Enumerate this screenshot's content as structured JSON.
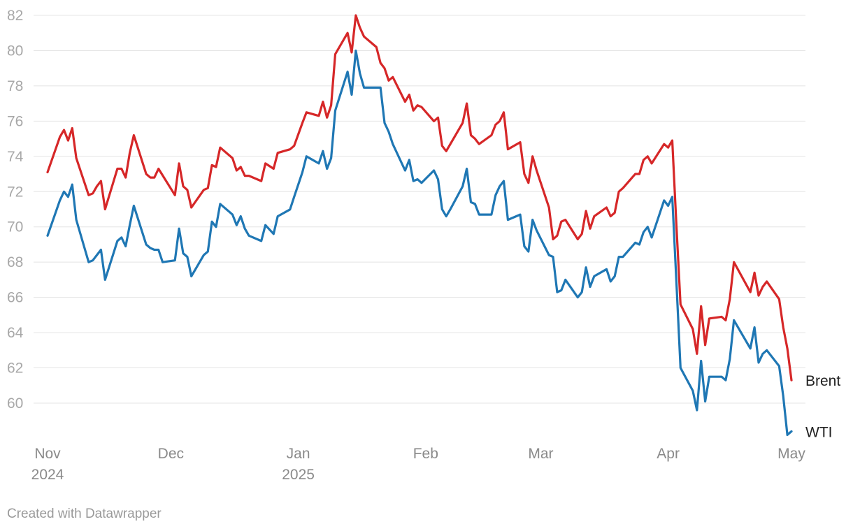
{
  "credit": "Created with Datawrapper",
  "chart_data": {
    "type": "line",
    "title": "",
    "xlabel": "",
    "ylabel": "",
    "xlim": [
      "2024-11-01",
      "2025-05-01"
    ],
    "ylim": [
      58,
      82
    ],
    "yticks": [
      60,
      62,
      64,
      66,
      68,
      70,
      72,
      74,
      76,
      78,
      80,
      82
    ],
    "xticks": [
      {
        "date": "2024-11-01",
        "label": "Nov",
        "sublabel": "2024"
      },
      {
        "date": "2024-12-01",
        "label": "Dec",
        "sublabel": ""
      },
      {
        "date": "2025-01-01",
        "label": "Jan",
        "sublabel": "2025"
      },
      {
        "date": "2025-02-01",
        "label": "Feb",
        "sublabel": ""
      },
      {
        "date": "2025-03-01",
        "label": "Mar",
        "sublabel": ""
      },
      {
        "date": "2025-04-01",
        "label": "Apr",
        "sublabel": ""
      },
      {
        "date": "2025-05-01",
        "label": "May",
        "sublabel": ""
      }
    ],
    "grid": true,
    "legend": "direct labels at line ends",
    "series": [
      {
        "name": "Brent",
        "color": "#d62728",
        "points": [
          [
            "2024-11-01",
            73.1
          ],
          [
            "2024-11-04",
            75.1
          ],
          [
            "2024-11-05",
            75.5
          ],
          [
            "2024-11-06",
            74.9
          ],
          [
            "2024-11-07",
            75.6
          ],
          [
            "2024-11-08",
            73.9
          ],
          [
            "2024-11-11",
            71.8
          ],
          [
            "2024-11-12",
            71.9
          ],
          [
            "2024-11-13",
            72.3
          ],
          [
            "2024-11-14",
            72.6
          ],
          [
            "2024-11-15",
            71.0
          ],
          [
            "2024-11-18",
            73.3
          ],
          [
            "2024-11-19",
            73.3
          ],
          [
            "2024-11-20",
            72.8
          ],
          [
            "2024-11-21",
            74.2
          ],
          [
            "2024-11-22",
            75.2
          ],
          [
            "2024-11-25",
            73.0
          ],
          [
            "2024-11-26",
            72.8
          ],
          [
            "2024-11-27",
            72.8
          ],
          [
            "2024-11-28",
            73.3
          ],
          [
            "2024-12-02",
            71.8
          ],
          [
            "2024-12-03",
            73.6
          ],
          [
            "2024-12-04",
            72.3
          ],
          [
            "2024-12-05",
            72.1
          ],
          [
            "2024-12-06",
            71.1
          ],
          [
            "2024-12-09",
            72.1
          ],
          [
            "2024-12-10",
            72.2
          ],
          [
            "2024-12-11",
            73.5
          ],
          [
            "2024-12-12",
            73.4
          ],
          [
            "2024-12-13",
            74.5
          ],
          [
            "2024-12-16",
            73.9
          ],
          [
            "2024-12-17",
            73.2
          ],
          [
            "2024-12-18",
            73.4
          ],
          [
            "2024-12-19",
            72.9
          ],
          [
            "2024-12-20",
            72.9
          ],
          [
            "2024-12-23",
            72.6
          ],
          [
            "2024-12-24",
            73.6
          ],
          [
            "2024-12-26",
            73.3
          ],
          [
            "2024-12-27",
            74.2
          ],
          [
            "2024-12-30",
            74.4
          ],
          [
            "2024-12-31",
            74.6
          ],
          [
            "2025-01-02",
            75.9
          ],
          [
            "2025-01-03",
            76.5
          ],
          [
            "2025-01-06",
            76.3
          ],
          [
            "2025-01-07",
            77.1
          ],
          [
            "2025-01-08",
            76.2
          ],
          [
            "2025-01-09",
            76.9
          ],
          [
            "2025-01-10",
            79.8
          ],
          [
            "2025-01-13",
            81.0
          ],
          [
            "2025-01-14",
            79.9
          ],
          [
            "2025-01-15",
            82.0
          ],
          [
            "2025-01-16",
            81.3
          ],
          [
            "2025-01-17",
            80.8
          ],
          [
            "2025-01-20",
            80.2
          ],
          [
            "2025-01-21",
            79.3
          ],
          [
            "2025-01-22",
            79.0
          ],
          [
            "2025-01-23",
            78.3
          ],
          [
            "2025-01-24",
            78.5
          ],
          [
            "2025-01-27",
            77.1
          ],
          [
            "2025-01-28",
            77.5
          ],
          [
            "2025-01-29",
            76.6
          ],
          [
            "2025-01-30",
            76.9
          ],
          [
            "2025-01-31",
            76.8
          ],
          [
            "2025-02-03",
            76.0
          ],
          [
            "2025-02-04",
            76.2
          ],
          [
            "2025-02-05",
            74.6
          ],
          [
            "2025-02-06",
            74.3
          ],
          [
            "2025-02-07",
            74.7
          ],
          [
            "2025-02-10",
            75.9
          ],
          [
            "2025-02-11",
            77.0
          ],
          [
            "2025-02-12",
            75.2
          ],
          [
            "2025-02-13",
            75.0
          ],
          [
            "2025-02-14",
            74.7
          ],
          [
            "2025-02-17",
            75.2
          ],
          [
            "2025-02-18",
            75.8
          ],
          [
            "2025-02-19",
            76.0
          ],
          [
            "2025-02-20",
            76.5
          ],
          [
            "2025-02-21",
            74.4
          ],
          [
            "2025-02-24",
            74.8
          ],
          [
            "2025-02-25",
            73.0
          ],
          [
            "2025-02-26",
            72.5
          ],
          [
            "2025-02-27",
            74.0
          ],
          [
            "2025-02-28",
            73.2
          ],
          [
            "2025-03-03",
            71.1
          ],
          [
            "2025-03-04",
            69.3
          ],
          [
            "2025-03-05",
            69.5
          ],
          [
            "2025-03-06",
            70.3
          ],
          [
            "2025-03-07",
            70.4
          ],
          [
            "2025-03-10",
            69.3
          ],
          [
            "2025-03-11",
            69.6
          ],
          [
            "2025-03-12",
            70.9
          ],
          [
            "2025-03-13",
            69.9
          ],
          [
            "2025-03-14",
            70.6
          ],
          [
            "2025-03-17",
            71.1
          ],
          [
            "2025-03-18",
            70.6
          ],
          [
            "2025-03-19",
            70.8
          ],
          [
            "2025-03-20",
            72.0
          ],
          [
            "2025-03-21",
            72.2
          ],
          [
            "2025-03-24",
            73.0
          ],
          [
            "2025-03-25",
            73.0
          ],
          [
            "2025-03-26",
            73.8
          ],
          [
            "2025-03-27",
            74.0
          ],
          [
            "2025-03-28",
            73.6
          ],
          [
            "2025-03-31",
            74.7
          ],
          [
            "2025-04-01",
            74.5
          ],
          [
            "2025-04-02",
            74.9
          ],
          [
            "2025-04-03",
            70.1
          ],
          [
            "2025-04-04",
            65.6
          ],
          [
            "2025-04-07",
            64.2
          ],
          [
            "2025-04-08",
            62.8
          ],
          [
            "2025-04-09",
            65.5
          ],
          [
            "2025-04-10",
            63.3
          ],
          [
            "2025-04-11",
            64.8
          ],
          [
            "2025-04-14",
            64.9
          ],
          [
            "2025-04-15",
            64.7
          ],
          [
            "2025-04-16",
            65.9
          ],
          [
            "2025-04-17",
            68.0
          ],
          [
            "2025-04-21",
            66.3
          ],
          [
            "2025-04-22",
            67.4
          ],
          [
            "2025-04-23",
            66.1
          ],
          [
            "2025-04-24",
            66.6
          ],
          [
            "2025-04-25",
            66.9
          ],
          [
            "2025-04-28",
            65.9
          ],
          [
            "2025-04-29",
            64.3
          ],
          [
            "2025-04-30",
            63.1
          ],
          [
            "2025-05-01",
            61.3
          ]
        ]
      },
      {
        "name": "WTI",
        "color": "#1f77b4",
        "points": [
          [
            "2024-11-01",
            69.5
          ],
          [
            "2024-11-04",
            71.5
          ],
          [
            "2024-11-05",
            72.0
          ],
          [
            "2024-11-06",
            71.7
          ],
          [
            "2024-11-07",
            72.4
          ],
          [
            "2024-11-08",
            70.4
          ],
          [
            "2024-11-11",
            68.0
          ],
          [
            "2024-11-12",
            68.1
          ],
          [
            "2024-11-13",
            68.4
          ],
          [
            "2024-11-14",
            68.7
          ],
          [
            "2024-11-15",
            67.0
          ],
          [
            "2024-11-18",
            69.2
          ],
          [
            "2024-11-19",
            69.4
          ],
          [
            "2024-11-20",
            68.9
          ],
          [
            "2024-11-21",
            70.1
          ],
          [
            "2024-11-22",
            71.2
          ],
          [
            "2024-11-25",
            69.0
          ],
          [
            "2024-11-26",
            68.8
          ],
          [
            "2024-11-27",
            68.7
          ],
          [
            "2024-11-28",
            68.7
          ],
          [
            "2024-11-29",
            68.0
          ],
          [
            "2024-12-02",
            68.1
          ],
          [
            "2024-12-03",
            69.9
          ],
          [
            "2024-12-04",
            68.5
          ],
          [
            "2024-12-05",
            68.3
          ],
          [
            "2024-12-06",
            67.2
          ],
          [
            "2024-12-09",
            68.4
          ],
          [
            "2024-12-10",
            68.6
          ],
          [
            "2024-12-11",
            70.3
          ],
          [
            "2024-12-12",
            70.0
          ],
          [
            "2024-12-13",
            71.3
          ],
          [
            "2024-12-16",
            70.7
          ],
          [
            "2024-12-17",
            70.1
          ],
          [
            "2024-12-18",
            70.6
          ],
          [
            "2024-12-19",
            69.9
          ],
          [
            "2024-12-20",
            69.5
          ],
          [
            "2024-12-23",
            69.2
          ],
          [
            "2024-12-24",
            70.1
          ],
          [
            "2024-12-26",
            69.6
          ],
          [
            "2024-12-27",
            70.6
          ],
          [
            "2024-12-30",
            70.99
          ],
          [
            "2024-12-31",
            71.7
          ],
          [
            "2025-01-02",
            73.1
          ],
          [
            "2025-01-03",
            74.0
          ],
          [
            "2025-01-06",
            73.6
          ],
          [
            "2025-01-07",
            74.3
          ],
          [
            "2025-01-08",
            73.3
          ],
          [
            "2025-01-09",
            73.9
          ],
          [
            "2025-01-10",
            76.6
          ],
          [
            "2025-01-13",
            78.8
          ],
          [
            "2025-01-14",
            77.5
          ],
          [
            "2025-01-15",
            80.0
          ],
          [
            "2025-01-16",
            78.7
          ],
          [
            "2025-01-17",
            77.9
          ],
          [
            "2025-01-21",
            77.9
          ],
          [
            "2025-01-22",
            75.9
          ],
          [
            "2025-01-23",
            75.4
          ],
          [
            "2025-01-24",
            74.7
          ],
          [
            "2025-01-27",
            73.2
          ],
          [
            "2025-01-28",
            73.8
          ],
          [
            "2025-01-29",
            72.6
          ],
          [
            "2025-01-30",
            72.7
          ],
          [
            "2025-01-31",
            72.5
          ],
          [
            "2025-02-03",
            73.2
          ],
          [
            "2025-02-04",
            72.7
          ],
          [
            "2025-02-05",
            71.0
          ],
          [
            "2025-02-06",
            70.6
          ],
          [
            "2025-02-07",
            71.0
          ],
          [
            "2025-02-10",
            72.3
          ],
          [
            "2025-02-11",
            73.3
          ],
          [
            "2025-02-12",
            71.4
          ],
          [
            "2025-02-13",
            71.3
          ],
          [
            "2025-02-14",
            70.7
          ],
          [
            "2025-02-17",
            70.7
          ],
          [
            "2025-02-18",
            71.8
          ],
          [
            "2025-02-19",
            72.3
          ],
          [
            "2025-02-20",
            72.6
          ],
          [
            "2025-02-21",
            70.4
          ],
          [
            "2025-02-24",
            70.7
          ],
          [
            "2025-02-25",
            68.9
          ],
          [
            "2025-02-26",
            68.6
          ],
          [
            "2025-02-27",
            70.4
          ],
          [
            "2025-02-28",
            69.8
          ],
          [
            "2025-03-03",
            68.4
          ],
          [
            "2025-03-04",
            68.3
          ],
          [
            "2025-03-05",
            66.3
          ],
          [
            "2025-03-06",
            66.4
          ],
          [
            "2025-03-07",
            67.0
          ],
          [
            "2025-03-10",
            66.0
          ],
          [
            "2025-03-11",
            66.3
          ],
          [
            "2025-03-12",
            67.7
          ],
          [
            "2025-03-13",
            66.6
          ],
          [
            "2025-03-14",
            67.2
          ],
          [
            "2025-03-17",
            67.6
          ],
          [
            "2025-03-18",
            66.9
          ],
          [
            "2025-03-19",
            67.2
          ],
          [
            "2025-03-20",
            68.3
          ],
          [
            "2025-03-21",
            68.3
          ],
          [
            "2025-03-24",
            69.1
          ],
          [
            "2025-03-25",
            69.0
          ],
          [
            "2025-03-26",
            69.7
          ],
          [
            "2025-03-27",
            70.0
          ],
          [
            "2025-03-28",
            69.4
          ],
          [
            "2025-03-31",
            71.5
          ],
          [
            "2025-04-01",
            71.2
          ],
          [
            "2025-04-02",
            71.7
          ],
          [
            "2025-04-03",
            66.9
          ],
          [
            "2025-04-04",
            62.0
          ],
          [
            "2025-04-07",
            60.7
          ],
          [
            "2025-04-08",
            59.6
          ],
          [
            "2025-04-09",
            62.4
          ],
          [
            "2025-04-10",
            60.1
          ],
          [
            "2025-04-11",
            61.5
          ],
          [
            "2025-04-14",
            61.5
          ],
          [
            "2025-04-15",
            61.3
          ],
          [
            "2025-04-16",
            62.5
          ],
          [
            "2025-04-17",
            64.7
          ],
          [
            "2025-04-21",
            63.1
          ],
          [
            "2025-04-22",
            64.3
          ],
          [
            "2025-04-23",
            62.3
          ],
          [
            "2025-04-24",
            62.8
          ],
          [
            "2025-04-25",
            63.0
          ],
          [
            "2025-04-28",
            62.1
          ],
          [
            "2025-04-29",
            60.4
          ],
          [
            "2025-04-30",
            58.2
          ],
          [
            "2025-05-01",
            58.4
          ]
        ]
      }
    ]
  }
}
